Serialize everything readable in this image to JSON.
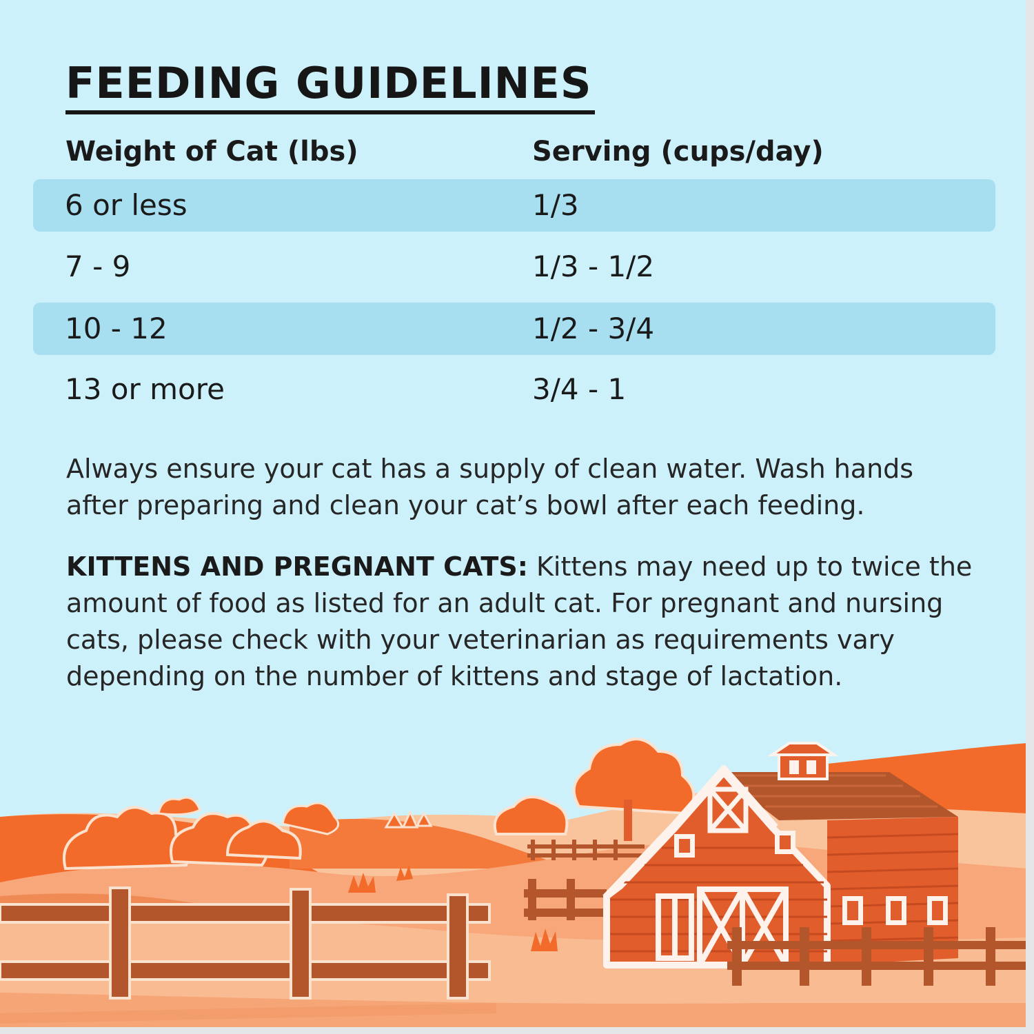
{
  "title": "FEEDING GUIDELINES",
  "table": {
    "headers": [
      "Weight of Cat (lbs)",
      "Serving (cups/day)"
    ],
    "rows": [
      [
        "6 or less",
        "1/3"
      ],
      [
        "7 - 9",
        "1/3 - 1/2"
      ],
      [
        "10 - 12",
        "1/2 - 3/4"
      ],
      [
        "13 or more",
        "3/4 - 1"
      ]
    ]
  },
  "notes": {
    "water": "Always ensure your cat has a supply of clean water. Wash hands after preparing and clean your cat’s bowl after each feeding.",
    "kittens_label": "KITTENS AND PREGNANT CATS:",
    "kittens_text": "Kittens may need up to twice the amount of food as listed for an adult cat. For pregnant and nursing cats, please check with your veterinarian as requirements vary depending on the number of kittens and stage of lactation."
  },
  "illustration": {
    "subject": "farm-scene-barn-fence-hills-icon",
    "colors": {
      "sky": "#cdf1fb",
      "band": "#a7dff1",
      "orange": "#f26b2a",
      "light_orange": "#f7a77a",
      "pale_orange": "#f9c39c",
      "brown": "#b4562b",
      "barn_red": "#e25d2c",
      "white": "#fdf3ec"
    }
  }
}
